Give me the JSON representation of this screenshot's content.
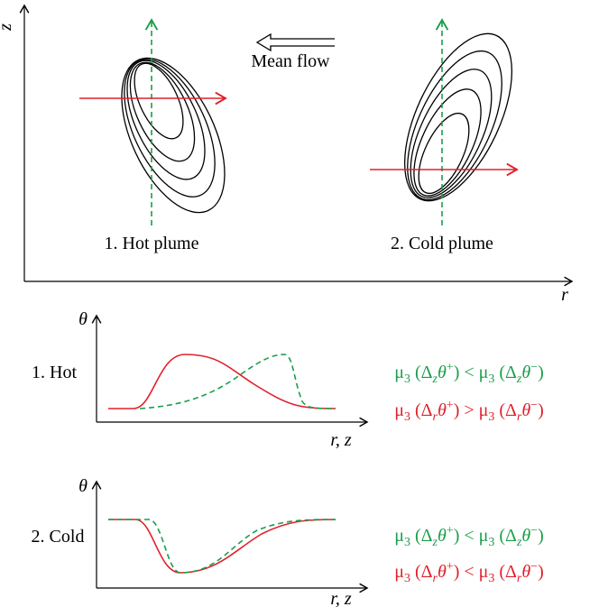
{
  "top": {
    "z_axis": "z",
    "r_axis": "r",
    "mean_flow": "Mean flow",
    "hot_label": "1. Hot plume",
    "cold_label": "2. Cold plume"
  },
  "hot": {
    "theta": "θ",
    "label": "1. Hot",
    "x_axis": "r, z",
    "formula_z": [
      {
        "text": "μ"
      },
      {
        "text": "3",
        "sub": true
      },
      {
        "text": " (Δ"
      },
      {
        "text": "z",
        "sub": true
      },
      {
        "text": "θ"
      },
      {
        "text": "+",
        "sup": true
      },
      {
        "text": ") < μ"
      },
      {
        "text": "3",
        "sub": true
      },
      {
        "text": " (Δ"
      },
      {
        "text": "z",
        "sub": true
      },
      {
        "text": "θ"
      },
      {
        "text": "−",
        "sup": true
      },
      {
        "text": ")"
      }
    ],
    "formula_r": [
      {
        "text": "μ"
      },
      {
        "text": "3",
        "sub": true
      },
      {
        "text": " (Δ"
      },
      {
        "text": "r",
        "sub": true
      },
      {
        "text": "θ"
      },
      {
        "text": "+",
        "sup": true
      },
      {
        "text": ") > μ"
      },
      {
        "text": "3",
        "sub": true
      },
      {
        "text": " (Δ"
      },
      {
        "text": "r",
        "sub": true
      },
      {
        "text": "θ"
      },
      {
        "text": "−",
        "sup": true
      },
      {
        "text": ")"
      }
    ]
  },
  "cold": {
    "theta": "θ",
    "label": "2. Cold",
    "x_axis": "r, z",
    "formula_z": [
      {
        "text": "μ"
      },
      {
        "text": "3",
        "sub": true
      },
      {
        "text": " (Δ"
      },
      {
        "text": "z",
        "sub": true
      },
      {
        "text": "θ"
      },
      {
        "text": "+",
        "sup": true
      },
      {
        "text": ") < μ"
      },
      {
        "text": "3",
        "sub": true
      },
      {
        "text": " (Δ"
      },
      {
        "text": "z",
        "sub": true
      },
      {
        "text": "θ"
      },
      {
        "text": "−",
        "sup": true
      },
      {
        "text": ")"
      }
    ],
    "formula_r": [
      {
        "text": "μ"
      },
      {
        "text": "3",
        "sub": true
      },
      {
        "text": " (Δ"
      },
      {
        "text": "r",
        "sub": true
      },
      {
        "text": "θ"
      },
      {
        "text": "+",
        "sup": true
      },
      {
        "text": ") < μ"
      },
      {
        "text": "3",
        "sub": true
      },
      {
        "text": " (Δ"
      },
      {
        "text": "r",
        "sub": true
      },
      {
        "text": "θ"
      },
      {
        "text": "−",
        "sup": true
      },
      {
        "text": ")"
      }
    ]
  }
}
